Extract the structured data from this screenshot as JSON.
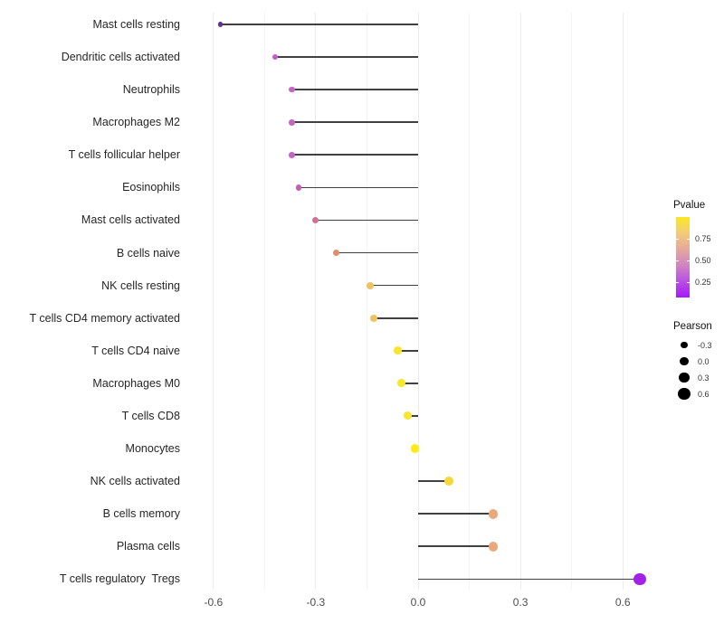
{
  "chart_data": {
    "type": "scatter",
    "style": "lollipop",
    "title": "",
    "xlabel": "",
    "ylabel": "",
    "categories": [
      "Mast cells resting",
      "Dendritic cells activated",
      "Neutrophils",
      "Macrophages M2",
      "T cells follicular helper",
      "Eosinophils",
      "Mast cells activated",
      "B cells naive",
      "NK cells resting",
      "T cells CD4 memory activated",
      "T cells CD4 naive",
      "Macrophages M0",
      "T cells CD8",
      "Monocytes",
      "NK cells activated",
      "B cells memory",
      "Plasma cells",
      "T cells regulatory  Tregs"
    ],
    "values": [
      -0.58,
      -0.42,
      -0.37,
      -0.37,
      -0.37,
      -0.35,
      -0.3,
      -0.24,
      -0.14,
      -0.13,
      -0.06,
      -0.05,
      -0.03,
      -0.01,
      0.09,
      0.22,
      0.22,
      0.65
    ],
    "point_colors": [
      "#5f3095",
      "#c45ec6",
      "#c763c3",
      "#c763c3",
      "#c763c3",
      "#c75fae",
      "#cf7094",
      "#e08d72",
      "#f0c25e",
      "#f0c25e",
      "#f8e62a",
      "#f8e62a",
      "#f8e52c",
      "#fbec15",
      "#f4d73e",
      "#e9a97c",
      "#e9a97c",
      "#a322e8"
    ],
    "xlim": [
      -0.68,
      0.68
    ],
    "x_tick_values": [
      -0.6,
      -0.3,
      0.0,
      0.3,
      0.6
    ],
    "x_tick_labels": [
      "-0.6",
      "-0.3",
      "0.0",
      "0.3",
      "0.6"
    ],
    "minor_grid_values": [
      -0.45,
      -0.15,
      0.15,
      0.45
    ],
    "grid": "vertical-only",
    "stem_color": "#404040",
    "legend_position": "right"
  },
  "legend": {
    "pvalue": {
      "title": "Pvalue",
      "tick_labels": [
        "0.75",
        "0.50",
        "0.25"
      ],
      "gradient_top_to_bottom": [
        "#fbe723",
        "#f2cb79",
        "#e5a89c",
        "#d184c2",
        "#b94fe3",
        "#a519f7"
      ]
    },
    "pearson": {
      "title": "Pearson",
      "dot_color": "#000000",
      "entries": [
        {
          "label": "-0.3",
          "value": -0.3
        },
        {
          "label": "0.0",
          "value": 0.0
        },
        {
          "label": "0.3",
          "value": 0.3
        },
        {
          "label": "0.6",
          "value": 0.6
        }
      ]
    }
  }
}
